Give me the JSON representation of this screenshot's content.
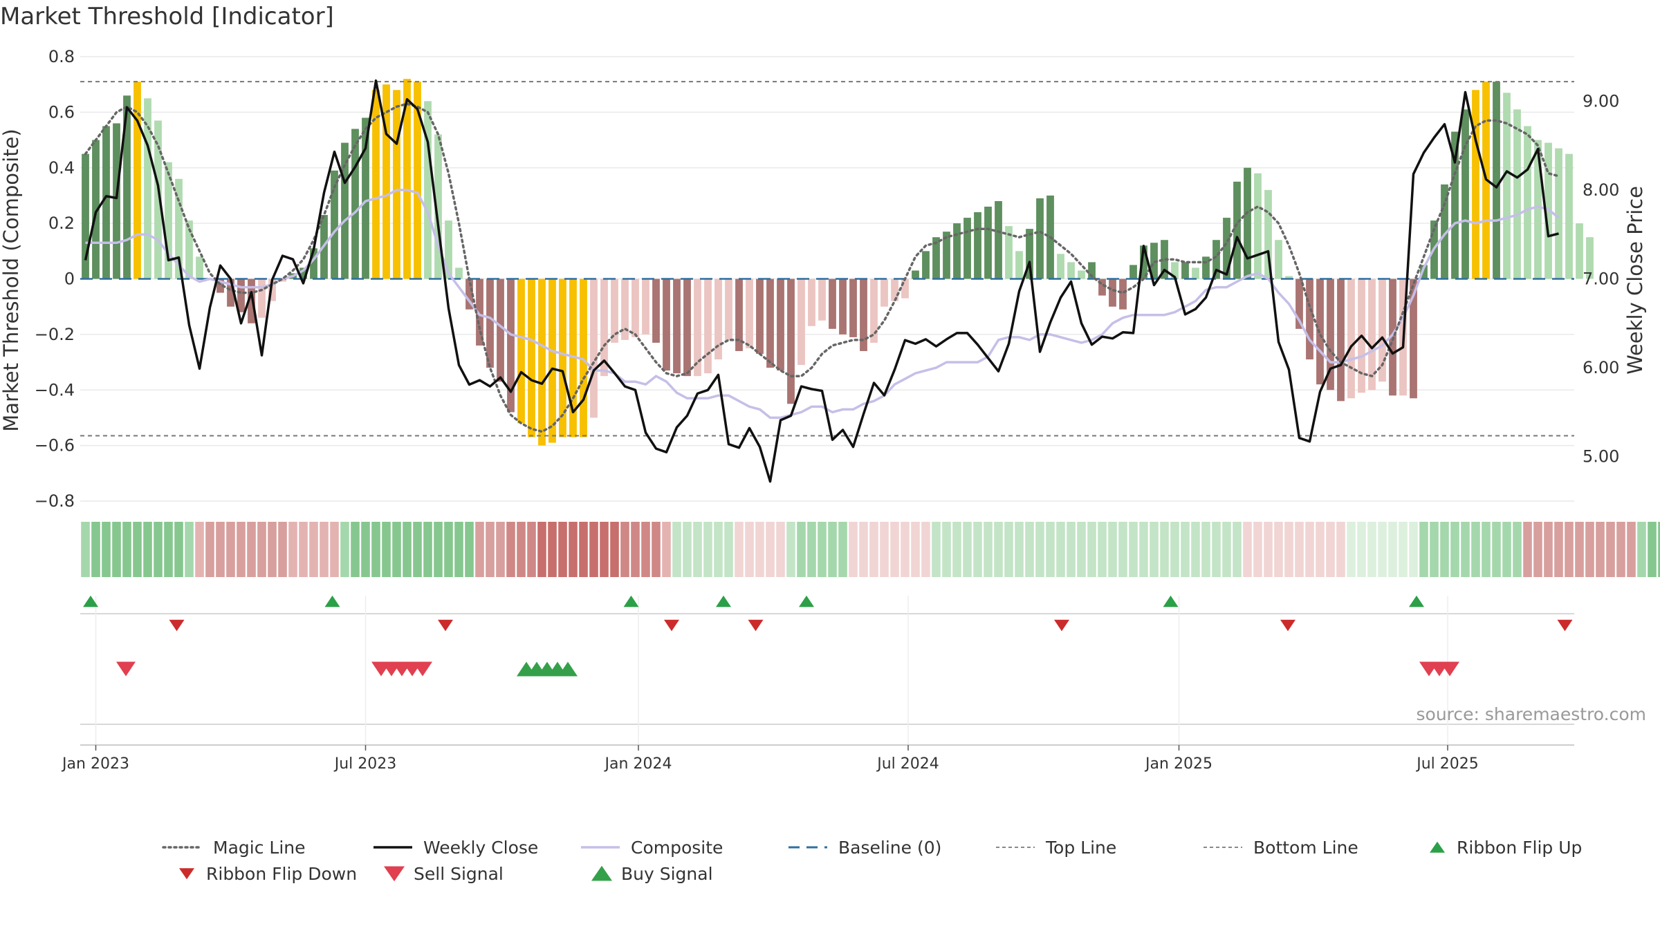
{
  "chart_data": {
    "type": "bar",
    "title": "Market Threshold [Indicator]",
    "ylabel_left": "Market Threshold (Composite)",
    "ylabel_right": "Weekly Close Price",
    "source_note": "source: sharemaestro.com",
    "y_left_lim": [
      -0.8,
      0.8
    ],
    "y_left_ticks": [
      0.8,
      0.6,
      0.4,
      0.2,
      0,
      -0.2,
      -0.4,
      -0.6,
      -0.8
    ],
    "y_left_tick_labels": [
      "0.8",
      "0.6",
      "0.4",
      "0.2",
      "0",
      "−0.2",
      "−0.4",
      "−0.6",
      "−0.8"
    ],
    "y_right_lim": [
      4.5,
      9.5
    ],
    "y_right_ticks": [
      9.0,
      8.0,
      7.0,
      6.0,
      5.0
    ],
    "y_right_tick_labels": [
      "9.00",
      "8.00",
      "7.00",
      "6.00",
      "5.00"
    ],
    "x_ticks": [
      {
        "week": 0,
        "label": "Jan 2023"
      },
      {
        "week": 26,
        "label": "Jul 2023"
      },
      {
        "week": 52.3,
        "label": "Jan 2024"
      },
      {
        "week": 78.3,
        "label": "Jul 2024"
      },
      {
        "week": 104.4,
        "label": "Jan 2025"
      },
      {
        "week": 130.3,
        "label": "Jul 2025"
      }
    ],
    "x_range_weeks": [
      -1.5,
      142.5
    ],
    "start_week": -1,
    "top_line": 0.71,
    "bottom_line": -0.565,
    "baseline": 0,
    "composite_bars": [
      0.45,
      0.5,
      0.55,
      0.56,
      0.66,
      0.71,
      0.65,
      0.57,
      0.42,
      0.36,
      0.21,
      0.08,
      0,
      -0.05,
      -0.1,
      -0.12,
      -0.16,
      -0.14,
      -0.08,
      -0.01,
      0.02,
      0.04,
      0.11,
      0.23,
      0.39,
      0.49,
      0.54,
      0.58,
      0.68,
      0.7,
      0.68,
      0.72,
      0.71,
      0.64,
      0.52,
      0.21,
      0.04,
      -0.11,
      -0.24,
      -0.32,
      -0.37,
      -0.48,
      -0.52,
      -0.57,
      -0.6,
      -0.59,
      -0.57,
      -0.57,
      -0.57,
      -0.5,
      -0.35,
      -0.23,
      -0.22,
      -0.21,
      -0.2,
      -0.23,
      -0.33,
      -0.34,
      -0.35,
      -0.35,
      -0.34,
      -0.29,
      -0.22,
      -0.26,
      -0.25,
      -0.27,
      -0.32,
      -0.33,
      -0.45,
      -0.31,
      -0.17,
      -0.15,
      -0.18,
      -0.2,
      -0.21,
      -0.26,
      -0.23,
      -0.1,
      -0.08,
      -0.07,
      0.03,
      0.1,
      0.15,
      0.17,
      0.2,
      0.22,
      0.24,
      0.26,
      0.28,
      0.19,
      0.1,
      0.18,
      0.29,
      0.3,
      0.09,
      0.06,
      0.03,
      0.06,
      -0.06,
      -0.1,
      -0.11,
      0.05,
      0.12,
      0.13,
      0.14,
      0.06,
      0.06,
      0.04,
      0.08,
      0.14,
      0.22,
      0.35,
      0.4,
      0.38,
      0.32,
      0.14,
      0.01,
      -0.18,
      -0.29,
      -0.38,
      -0.4,
      -0.44,
      -0.43,
      -0.41,
      -0.4,
      -0.37,
      -0.42,
      -0.42,
      -0.43,
      0.05,
      0.21,
      0.34,
      0.53,
      0.61,
      0.68,
      0.71,
      0.71,
      0.67,
      0.61,
      0.55,
      0.5,
      0.49,
      0.47,
      0.45,
      0.2,
      0.15
    ],
    "weekly_close": [
      7.21,
      7.75,
      7.93,
      7.91,
      8.93,
      8.78,
      8.5,
      8.05,
      7.21,
      7.24,
      6.48,
      5.99,
      6.68,
      7.15,
      7.0,
      6.5,
      6.85,
      6.14,
      6.99,
      7.26,
      7.22,
      6.95,
      7.33,
      7.97,
      8.43,
      8.08,
      8.26,
      8.47,
      9.23,
      8.63,
      8.52,
      9.02,
      8.91,
      8.54,
      7.6,
      6.67,
      6.03,
      5.81,
      5.86,
      5.79,
      5.89,
      5.73,
      5.95,
      5.86,
      5.82,
      5.99,
      5.96,
      5.5,
      5.64,
      5.97,
      6.08,
      5.94,
      5.79,
      5.75,
      5.27,
      5.09,
      5.05,
      5.33,
      5.46,
      5.71,
      5.75,
      5.92,
      5.14,
      5.1,
      5.32,
      5.11,
      4.72,
      5.41,
      5.46,
      5.79,
      5.76,
      5.74,
      5.19,
      5.3,
      5.11,
      5.48,
      5.83,
      5.69,
      5.98,
      6.31,
      6.27,
      6.32,
      6.24,
      6.32,
      6.39,
      6.39,
      6.26,
      6.11,
      5.96,
      6.27,
      6.86,
      7.19,
      6.18,
      6.51,
      6.79,
      6.97,
      6.5,
      6.26,
      6.35,
      6.33,
      6.4,
      6.39,
      7.37,
      6.93,
      7.1,
      7.02,
      6.6,
      6.66,
      6.79,
      7.1,
      7.05,
      7.47,
      7.23,
      7.27,
      7.31,
      6.29,
      5.98,
      5.21,
      5.17,
      5.73,
      5.99,
      6.03,
      6.24,
      6.36,
      6.22,
      6.34,
      6.16,
      6.23,
      8.18,
      8.42,
      8.59,
      8.74,
      8.31,
      9.1,
      8.56,
      8.12,
      8.03,
      8.21,
      8.14,
      8.23,
      8.46,
      7.48,
      7.51
    ],
    "composite_line": [
      0.13,
      0.13,
      0.13,
      0.13,
      0.14,
      0.16,
      0.16,
      0.14,
      0.09,
      0.05,
      0.01,
      -0.01,
      0.0,
      -0.01,
      -0.02,
      -0.03,
      -0.03,
      -0.03,
      -0.02,
      0.0,
      0.01,
      0.03,
      0.07,
      0.12,
      0.17,
      0.21,
      0.24,
      0.28,
      0.29,
      0.3,
      0.32,
      0.32,
      0.31,
      0.24,
      0.12,
      0.02,
      -0.03,
      -0.08,
      -0.13,
      -0.14,
      -0.17,
      -0.2,
      -0.21,
      -0.22,
      -0.24,
      -0.26,
      -0.27,
      -0.28,
      -0.29,
      -0.33,
      -0.33,
      -0.34,
      -0.37,
      -0.37,
      -0.38,
      -0.35,
      -0.37,
      -0.41,
      -0.43,
      -0.43,
      -0.43,
      -0.42,
      -0.42,
      -0.44,
      -0.46,
      -0.47,
      -0.5,
      -0.5,
      -0.49,
      -0.48,
      -0.46,
      -0.46,
      -0.48,
      -0.47,
      -0.47,
      -0.45,
      -0.44,
      -0.42,
      -0.38,
      -0.36,
      -0.34,
      -0.33,
      -0.32,
      -0.3,
      -0.3,
      -0.3,
      -0.3,
      -0.28,
      -0.22,
      -0.21,
      -0.21,
      -0.22,
      -0.2,
      -0.2,
      -0.21,
      -0.22,
      -0.23,
      -0.22,
      -0.2,
      -0.16,
      -0.14,
      -0.13,
      -0.13,
      -0.13,
      -0.13,
      -0.12,
      -0.1,
      -0.08,
      -0.04,
      -0.03,
      -0.03,
      -0.01,
      0.01,
      0.02,
      0.0,
      -0.05,
      -0.09,
      -0.15,
      -0.22,
      -0.26,
      -0.3,
      -0.3,
      -0.29,
      -0.28,
      -0.26,
      -0.24,
      -0.2,
      -0.14,
      -0.06,
      0.04,
      0.11,
      0.16,
      0.2,
      0.21,
      0.2,
      0.21,
      0.21,
      0.22,
      0.23,
      0.25,
      0.26,
      0.25,
      0.22
    ],
    "magic_line": [
      0.45,
      0.5,
      0.55,
      0.6,
      0.62,
      0.6,
      0.55,
      0.48,
      0.38,
      0.28,
      0.18,
      0.1,
      0.02,
      -0.02,
      -0.04,
      -0.05,
      -0.05,
      -0.04,
      -0.02,
      0.0,
      0.03,
      0.07,
      0.14,
      0.23,
      0.33,
      0.41,
      0.48,
      0.54,
      0.58,
      0.6,
      0.62,
      0.63,
      0.62,
      0.6,
      0.52,
      0.38,
      0.2,
      0.0,
      -0.18,
      -0.32,
      -0.42,
      -0.49,
      -0.52,
      -0.54,
      -0.55,
      -0.53,
      -0.49,
      -0.43,
      -0.36,
      -0.3,
      -0.24,
      -0.2,
      -0.18,
      -0.2,
      -0.25,
      -0.3,
      -0.34,
      -0.35,
      -0.34,
      -0.3,
      -0.27,
      -0.24,
      -0.22,
      -0.22,
      -0.24,
      -0.27,
      -0.3,
      -0.33,
      -0.35,
      -0.35,
      -0.32,
      -0.27,
      -0.24,
      -0.23,
      -0.22,
      -0.22,
      -0.2,
      -0.15,
      -0.08,
      0.0,
      0.08,
      0.12,
      0.13,
      0.15,
      0.16,
      0.17,
      0.18,
      0.18,
      0.17,
      0.16,
      0.15,
      0.16,
      0.17,
      0.15,
      0.12,
      0.09,
      0.05,
      0.01,
      -0.02,
      -0.04,
      -0.05,
      -0.03,
      0.0,
      0.06,
      0.07,
      0.07,
      0.06,
      0.06,
      0.06,
      0.08,
      0.13,
      0.2,
      0.24,
      0.26,
      0.24,
      0.2,
      0.12,
      0.02,
      -0.1,
      -0.2,
      -0.26,
      -0.3,
      -0.32,
      -0.34,
      -0.35,
      -0.31,
      -0.22,
      -0.12,
      -0.02,
      0.08,
      0.18,
      0.27,
      0.38,
      0.48,
      0.55,
      0.57,
      0.57,
      0.56,
      0.54,
      0.52,
      0.48,
      0.38,
      0.37
    ],
    "ribbon_colors": [
      "#a5d7ac",
      "#86c78f",
      "#86c78f",
      "#86c78f",
      "#86c78f",
      "#86c78f",
      "#86c78f",
      "#86c78f",
      "#86c78f",
      "#86c78f",
      "#a5d7ac",
      "#e3b3b2",
      "#d79f9d",
      "#d79f9d",
      "#d79f9d",
      "#d79f9d",
      "#d79f9d",
      "#d79f9d",
      "#d79f9d",
      "#d79f9d",
      "#e3b3b2",
      "#e3b3b2",
      "#e3b3b2",
      "#e3b3b2",
      "#e3b3b2",
      "#a5d7ac",
      "#86c78f",
      "#86c78f",
      "#86c78f",
      "#86c78f",
      "#86c78f",
      "#86c78f",
      "#86c78f",
      "#86c78f",
      "#86c78f",
      "#86c78f",
      "#86c78f",
      "#86c78f",
      "#d79f9d",
      "#d79f9d",
      "#d79f9d",
      "#cf8886",
      "#cf8886",
      "#cf8886",
      "#c76f6d",
      "#c76f6d",
      "#c76f6d",
      "#c76f6d",
      "#c76f6d",
      "#c76f6d",
      "#c76f6d",
      "#c76f6d",
      "#cf8886",
      "#cf8886",
      "#cf8886",
      "#cf8886",
      "#e3b3b2",
      "#c3e4c6",
      "#c3e4c6",
      "#c3e4c6",
      "#c3e4c6",
      "#c3e4c6",
      "#c3e4c6",
      "#f0d5d4",
      "#f0d5d4",
      "#f0d5d4",
      "#f0d5d4",
      "#f0d5d4",
      "#c3e4c6",
      "#a5d7ac",
      "#a5d7ac",
      "#a5d7ac",
      "#a5d7ac",
      "#a5d7ac",
      "#f0d5d4",
      "#f0d5d4",
      "#f0d5d4",
      "#f0d5d4",
      "#f0d5d4",
      "#f0d5d4",
      "#f0d5d4",
      "#f0d5d4",
      "#c3e4c6",
      "#c3e4c6",
      "#c3e4c6",
      "#c3e4c6",
      "#c3e4c6",
      "#c3e4c6",
      "#c3e4c6",
      "#c3e4c6",
      "#c3e4c6",
      "#c3e4c6",
      "#c3e4c6",
      "#c3e4c6",
      "#c3e4c6",
      "#c3e4c6",
      "#c3e4c6",
      "#c3e4c6",
      "#c3e4c6",
      "#c3e4c6",
      "#c3e4c6",
      "#c3e4c6",
      "#c3e4c6",
      "#c3e4c6",
      "#c3e4c6",
      "#c3e4c6",
      "#c3e4c6",
      "#c3e4c6",
      "#c3e4c6",
      "#c3e4c6",
      "#c3e4c6",
      "#c3e4c6",
      "#f0d5d4",
      "#f0d5d4",
      "#f0d5d4",
      "#f0d5d4",
      "#f0d5d4",
      "#f0d5d4",
      "#f0d5d4",
      "#f0d5d4",
      "#f0d5d4",
      "#f0d5d4",
      "#dcf0dd",
      "#dcf0dd",
      "#dcf0dd",
      "#dcf0dd",
      "#dcf0dd",
      "#dcf0dd",
      "#dcf0dd",
      "#a5d7ac",
      "#a5d7ac",
      "#a5d7ac",
      "#a5d7ac",
      "#a5d7ac",
      "#a5d7ac",
      "#a5d7ac",
      "#a5d7ac",
      "#a5d7ac",
      "#a5d7ac",
      "#d79f9d",
      "#d79f9d",
      "#d79f9d",
      "#d79f9d",
      "#d79f9d",
      "#d79f9d",
      "#d79f9d",
      "#d79f9d",
      "#d79f9d",
      "#d79f9d",
      "#d79f9d",
      "#a5d7ac",
      "#86c78f",
      "#86c78f",
      "#86c78f",
      "#86c78f",
      "#5fb36a",
      "#5fb36a",
      "#5fb36a",
      "#5fb36a",
      "#5fb36a",
      "#86c78f",
      "#86c78f",
      "#86c78f",
      "#86c78f",
      "#86c78f",
      "#a5d7ac",
      "#a5d7ac",
      "#f0d5d4"
    ],
    "ribbon_flip_up": [
      -0.5,
      22.8,
      51.6,
      60.5,
      68.5,
      103.6,
      127.3
    ],
    "ribbon_flip_down": [
      7.8,
      33.7,
      55.5,
      63.6,
      93.1,
      114.9,
      141.6
    ],
    "sell_signals": [
      2.9,
      27.5,
      28.5,
      29.5,
      30.5,
      31.5,
      128.5,
      129.5,
      130.5
    ],
    "buy_signals": [
      41.5,
      42.5,
      43.5,
      44.5,
      45.5
    ],
    "legend_entries": [
      {
        "label": "Magic Line",
        "style": "dotted",
        "color": "#666666"
      },
      {
        "label": "Weekly Close",
        "style": "solid",
        "color": "#111111"
      },
      {
        "label": "Composite",
        "style": "solid",
        "color": "#c5bfe8"
      },
      {
        "label": "Baseline (0)",
        "style": "dashed",
        "color": "#2f6f9f"
      },
      {
        "label": "Top Line",
        "style": "dashed-thin",
        "color": "#888888"
      },
      {
        "label": "Bottom Line",
        "style": "dashed-thin",
        "color": "#888888"
      },
      {
        "label": "Ribbon Flip Up",
        "style": "tri-up",
        "color": "#2ca048"
      },
      {
        "label": "Ribbon Flip Down",
        "style": "tri-down",
        "color": "#cc2b2b"
      },
      {
        "label": "Sell Signal",
        "style": "tri-down-big",
        "color": "#e04050"
      },
      {
        "label": "Buy Signal",
        "style": "tri-up-big",
        "color": "#35a04a"
      }
    ],
    "legend_placement": "bottom",
    "grid": true,
    "colors": {
      "bar_strong_pos": "#5e8f5e",
      "bar_light_pos": "#b0dab0",
      "bar_strong_neg": "#a97472",
      "bar_light_neg": "#ebc5c2",
      "bar_extreme": "#f7c000",
      "flip_up": "#2ca048",
      "flip_down": "#cc2b2b",
      "sell": "#e04050",
      "buy": "#35a04a"
    }
  }
}
